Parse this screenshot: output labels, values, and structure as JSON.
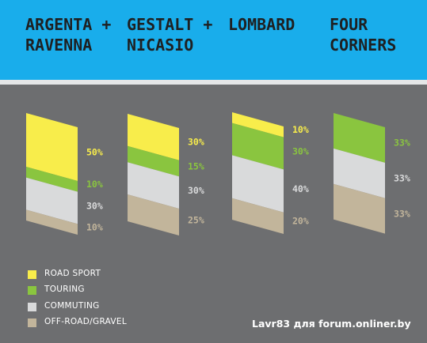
{
  "chart_data": {
    "type": "bar",
    "stacked": true,
    "unit": "%",
    "categories": [
      "ARGENTA + RAVENNA",
      "GESTALT + NICASIO",
      "LOMBARD",
      "FOUR CORNERS"
    ],
    "series": [
      {
        "name": "ROAD SPORT",
        "color": "#f8ed4b",
        "values": [
          50,
          30,
          10,
          0
        ],
        "labels": [
          "50%",
          "30%",
          "10%",
          ""
        ]
      },
      {
        "name": "TOURING",
        "color": "#8ac53f",
        "values": [
          10,
          15,
          30,
          33
        ],
        "labels": [
          "10%",
          "15%",
          "30%",
          "33%"
        ]
      },
      {
        "name": "COMMUTING",
        "color": "#d9dadb",
        "values": [
          30,
          30,
          40,
          33
        ],
        "labels": [
          "30%",
          "30%",
          "40%",
          "33%"
        ]
      },
      {
        "name": "OFF-ROAD/GRAVEL",
        "color": "#c2b59b",
        "values": [
          10,
          25,
          20,
          33
        ],
        "labels": [
          "10%",
          "25%",
          "20%",
          "33%"
        ]
      }
    ],
    "grid": false,
    "legend_position": "bottom-left"
  },
  "header": {
    "background": "#19adeb",
    "titles": [
      "ARGENTA +\nRAVENNA",
      "GESTALT +\nNICASIO",
      "LOMBARD",
      "FOUR\nCORNERS"
    ]
  },
  "watermark": "Lavr83 для forum.onliner.by"
}
